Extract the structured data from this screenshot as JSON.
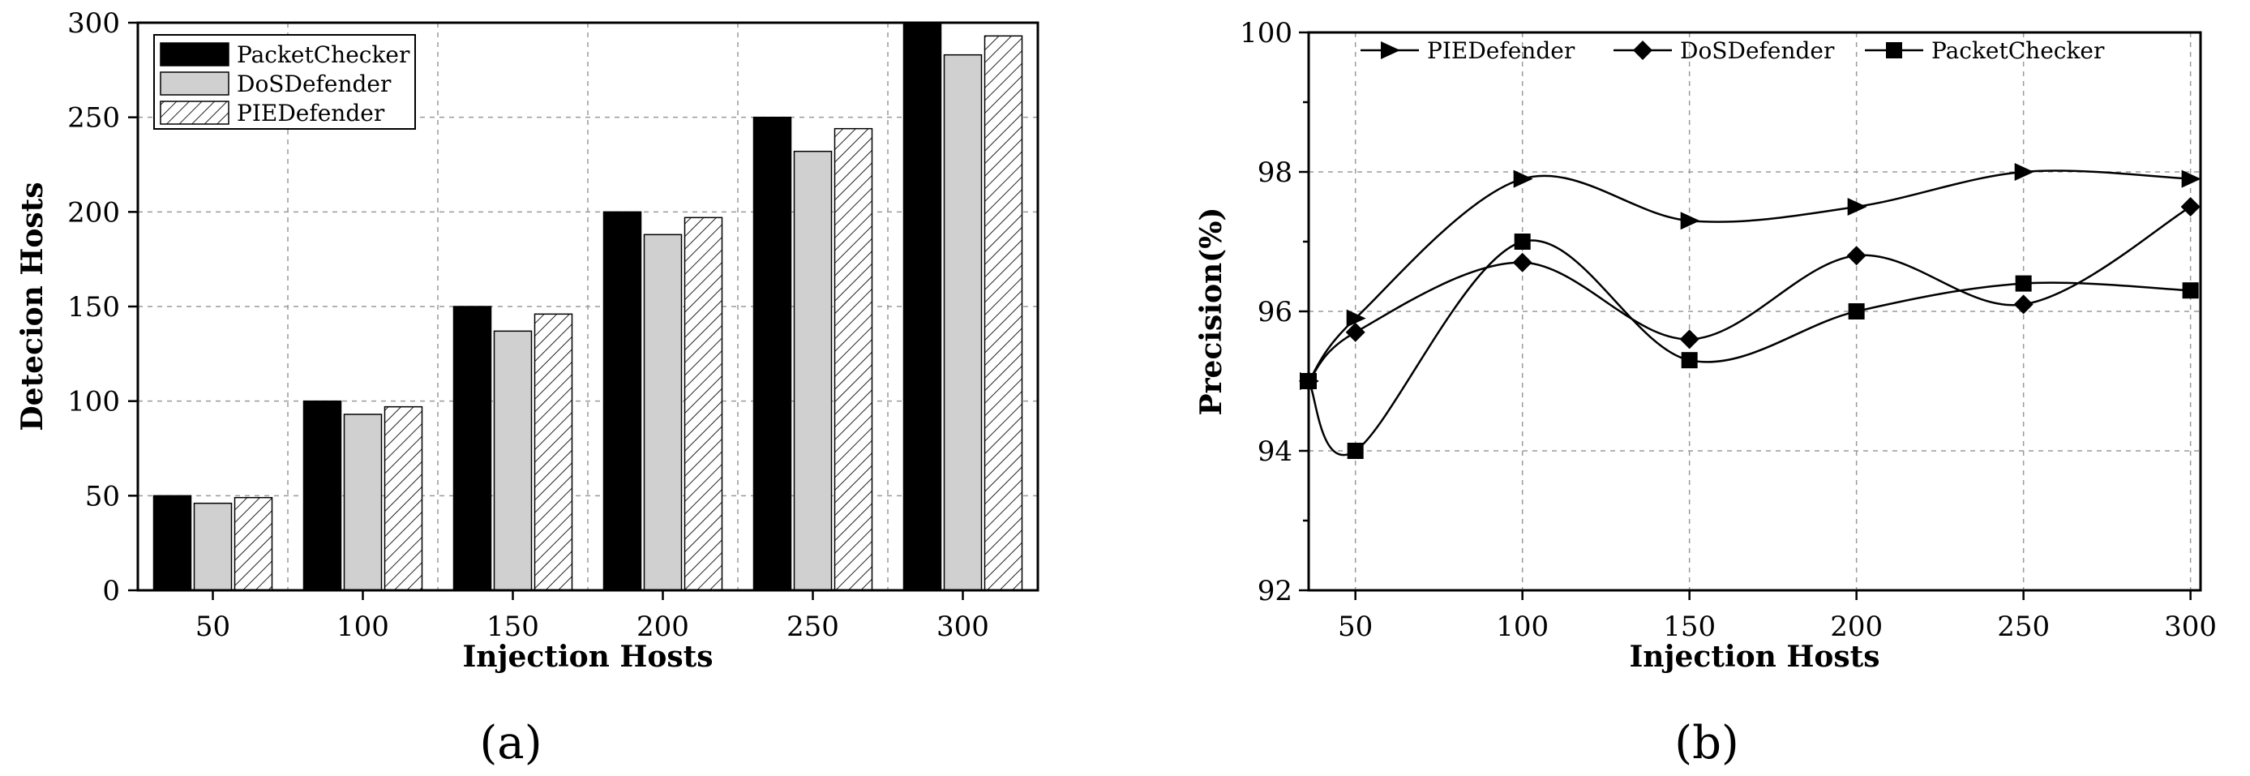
{
  "chart_data": [
    {
      "type": "bar",
      "panel_label": "(a)",
      "xlabel": "Injection Hosts",
      "ylabel": "Detecion Hosts",
      "categories": [
        "50",
        "100",
        "150",
        "200",
        "250",
        "300"
      ],
      "series": [
        {
          "name": "PacketChecker",
          "values": [
            50,
            100,
            150,
            200,
            250,
            300
          ],
          "fill": "#000000",
          "pattern": "solid"
        },
        {
          "name": "DoSDefender",
          "values": [
            46,
            93,
            137,
            188,
            232,
            283
          ],
          "fill": "#d0d0d0",
          "pattern": "solid"
        },
        {
          "name": "PIEDefender",
          "values": [
            49,
            97,
            146,
            197,
            244,
            293
          ],
          "fill": "#ffffff",
          "pattern": "hatch"
        }
      ],
      "ylim": [
        0,
        300
      ],
      "yticks": [
        0,
        50,
        100,
        150,
        200,
        250,
        300
      ],
      "grid": true,
      "legend_position": "top-left"
    },
    {
      "type": "line",
      "panel_label": "(b)",
      "xlabel": "Injection Hosts",
      "ylabel": "Precision(%)",
      "x": [
        50,
        100,
        150,
        200,
        250,
        300
      ],
      "xticks": [
        50,
        100,
        150,
        200,
        250,
        300
      ],
      "xlim": [
        36,
        303
      ],
      "series": [
        {
          "name": "PIEDefender",
          "marker": "triangle-right",
          "x": [
            36,
            50,
            100,
            150,
            200,
            250,
            300
          ],
          "values": [
            95.0,
            95.9,
            97.9,
            97.3,
            97.5,
            98.0,
            97.9
          ]
        },
        {
          "name": "DoSDefender",
          "marker": "diamond",
          "x": [
            36,
            50,
            100,
            150,
            200,
            250,
            300
          ],
          "values": [
            95.0,
            95.7,
            96.7,
            95.6,
            96.8,
            96.1,
            97.5
          ]
        },
        {
          "name": "PacketChecker",
          "marker": "square",
          "x": [
            36,
            50,
            100,
            150,
            200,
            250,
            300
          ],
          "values": [
            95.0,
            94.0,
            97.0,
            95.3,
            96.0,
            96.4,
            96.3
          ]
        }
      ],
      "ylim": [
        92,
        100
      ],
      "yticks": [
        92,
        94,
        96,
        98,
        100
      ],
      "smooth": true,
      "grid": true,
      "legend_position": "top"
    }
  ]
}
